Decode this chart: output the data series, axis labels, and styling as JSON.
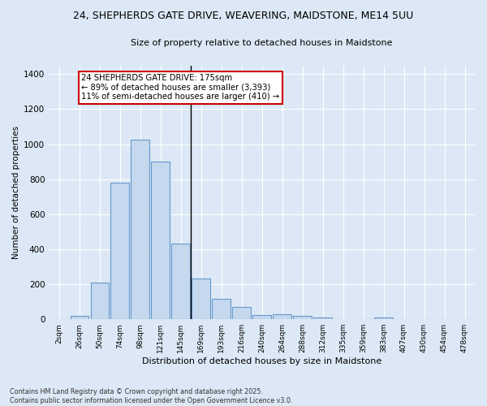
{
  "title_line1": "24, SHEPHERDS GATE DRIVE, WEAVERING, MAIDSTONE, ME14 5UU",
  "title_line2": "Size of property relative to detached houses in Maidstone",
  "xlabel": "Distribution of detached houses by size in Maidstone",
  "ylabel": "Number of detached properties",
  "categories": [
    "2sqm",
    "26sqm",
    "50sqm",
    "74sqm",
    "98sqm",
    "121sqm",
    "145sqm",
    "169sqm",
    "193sqm",
    "216sqm",
    "240sqm",
    "264sqm",
    "288sqm",
    "312sqm",
    "335sqm",
    "359sqm",
    "383sqm",
    "407sqm",
    "430sqm",
    "454sqm",
    "478sqm"
  ],
  "values": [
    0,
    20,
    210,
    780,
    1025,
    900,
    430,
    235,
    115,
    70,
    25,
    28,
    20,
    10,
    0,
    0,
    10,
    0,
    0,
    0,
    0
  ],
  "bar_color": "#c5d8ee",
  "bar_edge_color": "#6699cc",
  "property_line_index": 7,
  "annotation_text_line1": "24 SHEPHERDS GATE DRIVE: 175sqm",
  "annotation_text_line2": "← 89% of detached houses are smaller (3,393)",
  "annotation_text_line3": "11% of semi-detached houses are larger (410) →",
  "annotation_box_color": "#ffffff",
  "annotation_box_edge_color": "#cc0000",
  "ylim": [
    0,
    1450
  ],
  "yticks": [
    0,
    200,
    400,
    600,
    800,
    1000,
    1200,
    1400
  ],
  "background_color": "#dce8f5",
  "grid_color": "#ffffff",
  "footer_line1": "Contains HM Land Registry data © Crown copyright and database right 2025.",
  "footer_line2": "Contains public sector information licensed under the Open Government Licence v3.0."
}
